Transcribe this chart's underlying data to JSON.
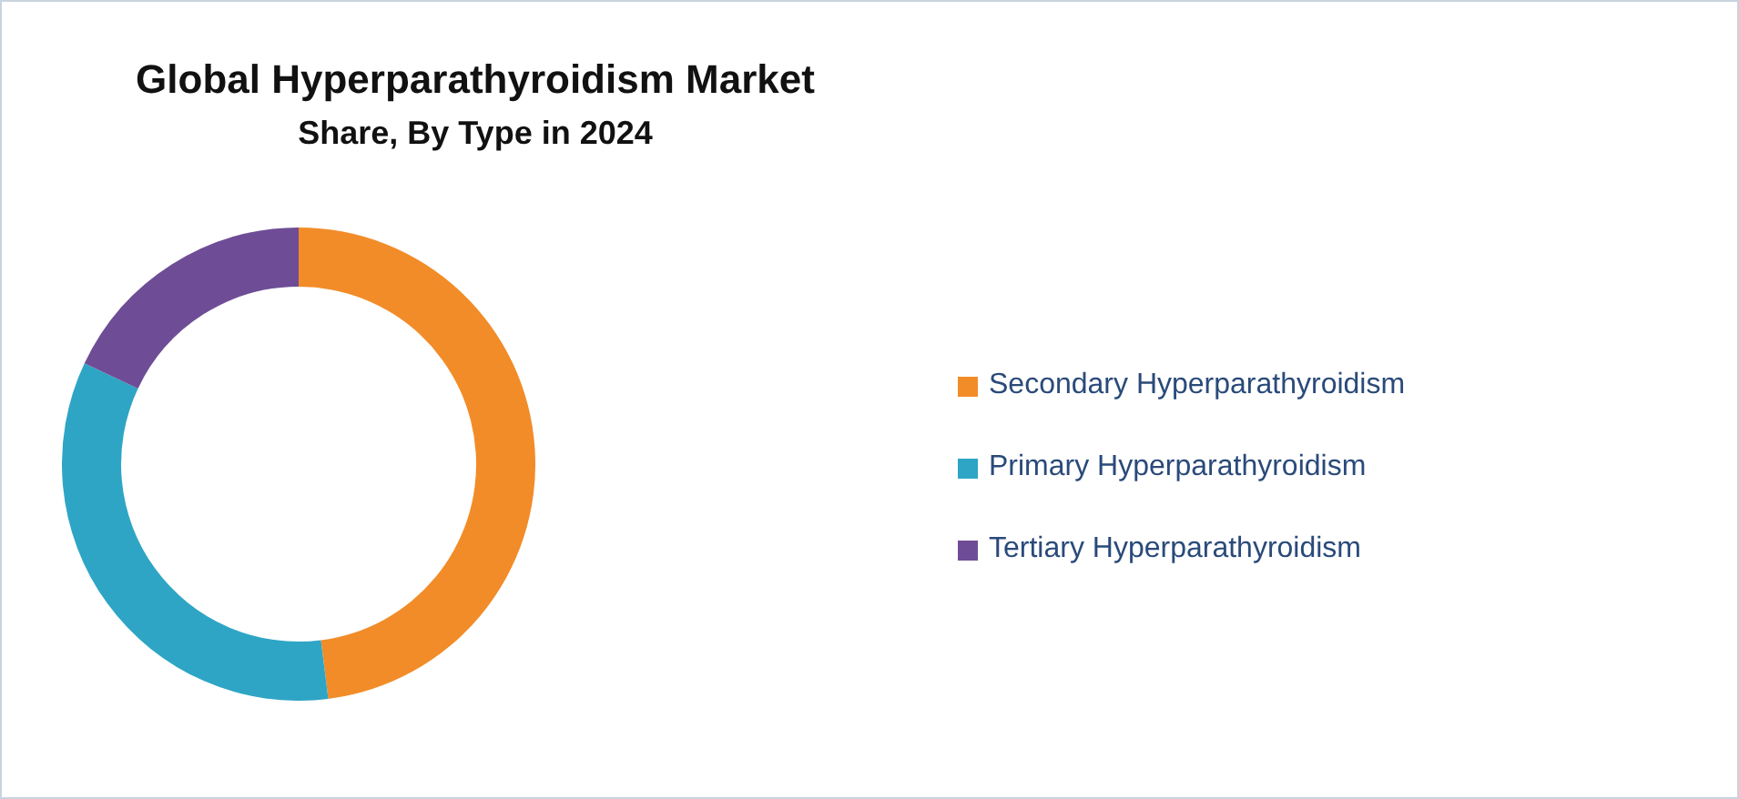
{
  "chart_data": {
    "type": "donut",
    "title": "Global Hyperparathyroidism Market",
    "subtitle": "Share, By Type in 2024",
    "categories": [
      "Secondary Hyperparathyroidism",
      "Primary Hyperparathyroidism",
      "Tertiary Hyperparathyroidism"
    ],
    "values": [
      48,
      34,
      18
    ],
    "colors": [
      "#f28c28",
      "#2ea5c5",
      "#6e4d96"
    ],
    "legend": "right"
  }
}
